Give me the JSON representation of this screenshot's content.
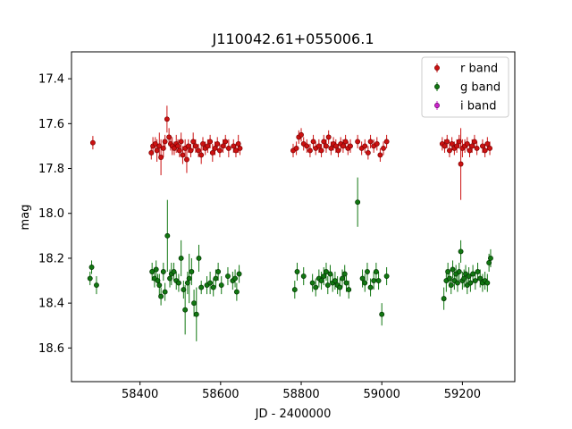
{
  "chart_data": {
    "type": "scatter",
    "title": "J110042.61+055006.1",
    "xlabel": "JD - 2400000",
    "ylabel": "mag",
    "xlim": [
      58230,
      59330
    ],
    "ylim": [
      18.75,
      17.28
    ],
    "y_inverted": true,
    "x_ticks": [
      58400,
      58600,
      58800,
      59000,
      59200
    ],
    "y_ticks": [
      17.4,
      17.6,
      17.8,
      18.0,
      18.2,
      18.4,
      18.6
    ],
    "x_tick_labels": [
      "58400",
      "58600",
      "58800",
      "59000",
      "59200"
    ],
    "y_tick_labels": [
      "17.4",
      "17.6",
      "17.8",
      "18.0",
      "18.2",
      "18.4",
      "18.6"
    ],
    "grid": false,
    "legend_position": "top-right",
    "series": [
      {
        "name": "r band",
        "color": "#cc1111",
        "edge_color": "#7a0000",
        "marker": "circle",
        "points": [
          [
            58283,
            17.685,
            0.03
          ],
          [
            58428,
            17.73,
            0.03
          ],
          [
            58432,
            17.7,
            0.04
          ],
          [
            58438,
            17.69,
            0.03
          ],
          [
            58442,
            17.72,
            0.05
          ],
          [
            58448,
            17.7,
            0.06
          ],
          [
            58452,
            17.75,
            0.08
          ],
          [
            58458,
            17.71,
            0.04
          ],
          [
            58462,
            17.68,
            0.03
          ],
          [
            58467,
            17.58,
            0.06
          ],
          [
            58472,
            17.66,
            0.04
          ],
          [
            58476,
            17.69,
            0.03
          ],
          [
            58480,
            17.7,
            0.04
          ],
          [
            58485,
            17.71,
            0.03
          ],
          [
            58490,
            17.69,
            0.04
          ],
          [
            58494,
            17.7,
            0.03
          ],
          [
            58498,
            17.72,
            0.03
          ],
          [
            58502,
            17.68,
            0.04
          ],
          [
            58506,
            17.74,
            0.04
          ],
          [
            58512,
            17.71,
            0.04
          ],
          [
            58516,
            17.76,
            0.06
          ],
          [
            58520,
            17.7,
            0.03
          ],
          [
            58526,
            17.72,
            0.03
          ],
          [
            58532,
            17.68,
            0.04
          ],
          [
            58538,
            17.7,
            0.03
          ],
          [
            58545,
            17.72,
            0.03
          ],
          [
            58552,
            17.74,
            0.04
          ],
          [
            58556,
            17.69,
            0.03
          ],
          [
            58562,
            17.71,
            0.03
          ],
          [
            58568,
            17.7,
            0.03
          ],
          [
            58574,
            17.68,
            0.03
          ],
          [
            58580,
            17.73,
            0.04
          ],
          [
            58586,
            17.71,
            0.03
          ],
          [
            58592,
            17.69,
            0.03
          ],
          [
            58598,
            17.72,
            0.03
          ],
          [
            58606,
            17.7,
            0.03
          ],
          [
            58612,
            17.68,
            0.03
          ],
          [
            58620,
            17.71,
            0.04
          ],
          [
            58632,
            17.7,
            0.03
          ],
          [
            58638,
            17.72,
            0.03
          ],
          [
            58644,
            17.69,
            0.04
          ],
          [
            58648,
            17.71,
            0.03
          ],
          [
            58780,
            17.72,
            0.03
          ],
          [
            58788,
            17.71,
            0.03
          ],
          [
            58794,
            17.66,
            0.03
          ],
          [
            58800,
            17.65,
            0.03
          ],
          [
            58806,
            17.69,
            0.03
          ],
          [
            58814,
            17.7,
            0.03
          ],
          [
            58822,
            17.72,
            0.03
          ],
          [
            58830,
            17.68,
            0.03
          ],
          [
            58836,
            17.71,
            0.03
          ],
          [
            58844,
            17.7,
            0.03
          ],
          [
            58850,
            17.72,
            0.03
          ],
          [
            58856,
            17.68,
            0.03
          ],
          [
            58862,
            17.7,
            0.03
          ],
          [
            58868,
            17.66,
            0.03
          ],
          [
            58874,
            17.71,
            0.03
          ],
          [
            58880,
            17.69,
            0.03
          ],
          [
            58886,
            17.7,
            0.03
          ],
          [
            58892,
            17.72,
            0.03
          ],
          [
            58898,
            17.69,
            0.03
          ],
          [
            58904,
            17.7,
            0.03
          ],
          [
            58910,
            17.68,
            0.03
          ],
          [
            58916,
            17.71,
            0.03
          ],
          [
            58922,
            17.7,
            0.03
          ],
          [
            58940,
            17.68,
            0.03
          ],
          [
            58950,
            17.71,
            0.03
          ],
          [
            58958,
            17.7,
            0.03
          ],
          [
            58966,
            17.73,
            0.03
          ],
          [
            58972,
            17.68,
            0.03
          ],
          [
            58980,
            17.7,
            0.03
          ],
          [
            58988,
            17.69,
            0.03
          ],
          [
            58996,
            17.74,
            0.03
          ],
          [
            59004,
            17.71,
            0.03
          ],
          [
            59012,
            17.68,
            0.03
          ],
          [
            59150,
            17.69,
            0.03
          ],
          [
            59156,
            17.7,
            0.03
          ],
          [
            59162,
            17.68,
            0.03
          ],
          [
            59168,
            17.72,
            0.03
          ],
          [
            59174,
            17.69,
            0.03
          ],
          [
            59180,
            17.71,
            0.03
          ],
          [
            59186,
            17.7,
            0.03
          ],
          [
            59192,
            17.68,
            0.03
          ],
          [
            59196,
            17.78,
            0.16
          ],
          [
            59200,
            17.71,
            0.04
          ],
          [
            59206,
            17.7,
            0.03
          ],
          [
            59212,
            17.69,
            0.03
          ],
          [
            59218,
            17.72,
            0.03
          ],
          [
            59224,
            17.7,
            0.03
          ],
          [
            59230,
            17.68,
            0.03
          ],
          [
            59236,
            17.71,
            0.03
          ],
          [
            59250,
            17.7,
            0.03
          ],
          [
            59256,
            17.72,
            0.03
          ],
          [
            59262,
            17.69,
            0.03
          ],
          [
            59268,
            17.71,
            0.03
          ]
        ]
      },
      {
        "name": "g band",
        "color": "#117711",
        "edge_color": "#003300",
        "marker": "circle",
        "points": [
          [
            58276,
            18.29,
            0.03
          ],
          [
            58280,
            18.24,
            0.03
          ],
          [
            58292,
            18.32,
            0.04
          ],
          [
            58430,
            18.26,
            0.04
          ],
          [
            58436,
            18.29,
            0.04
          ],
          [
            58440,
            18.25,
            0.04
          ],
          [
            58444,
            18.3,
            0.03
          ],
          [
            58448,
            18.32,
            0.05
          ],
          [
            58452,
            18.37,
            0.04
          ],
          [
            58458,
            18.26,
            0.04
          ],
          [
            58462,
            18.35,
            0.04
          ],
          [
            58468,
            18.1,
            0.16
          ],
          [
            58474,
            18.29,
            0.04
          ],
          [
            58478,
            18.27,
            0.05
          ],
          [
            58484,
            18.26,
            0.04
          ],
          [
            58490,
            18.3,
            0.04
          ],
          [
            58496,
            18.31,
            0.04
          ],
          [
            58502,
            18.2,
            0.08
          ],
          [
            58508,
            18.34,
            0.04
          ],
          [
            58512,
            18.43,
            0.11
          ],
          [
            58518,
            18.31,
            0.05
          ],
          [
            58522,
            18.29,
            0.11
          ],
          [
            58528,
            18.26,
            0.06
          ],
          [
            58534,
            18.4,
            0.06
          ],
          [
            58540,
            18.45,
            0.12
          ],
          [
            58546,
            18.2,
            0.06
          ],
          [
            58552,
            18.33,
            0.03
          ],
          [
            58566,
            18.32,
            0.04
          ],
          [
            58574,
            18.31,
            0.05
          ],
          [
            58582,
            18.33,
            0.04
          ],
          [
            58588,
            18.29,
            0.04
          ],
          [
            58594,
            18.26,
            0.04
          ],
          [
            58602,
            18.32,
            0.04
          ],
          [
            58618,
            18.28,
            0.04
          ],
          [
            58630,
            18.3,
            0.04
          ],
          [
            58636,
            18.29,
            0.04
          ],
          [
            58640,
            18.35,
            0.04
          ],
          [
            58646,
            18.27,
            0.04
          ],
          [
            58784,
            18.34,
            0.04
          ],
          [
            58790,
            18.26,
            0.04
          ],
          [
            58806,
            18.28,
            0.04
          ],
          [
            58828,
            18.31,
            0.04
          ],
          [
            58836,
            18.33,
            0.04
          ],
          [
            58844,
            18.29,
            0.04
          ],
          [
            58850,
            18.3,
            0.04
          ],
          [
            58856,
            18.28,
            0.04
          ],
          [
            58862,
            18.26,
            0.04
          ],
          [
            58866,
            18.32,
            0.04
          ],
          [
            58872,
            18.27,
            0.04
          ],
          [
            58878,
            18.31,
            0.04
          ],
          [
            58884,
            18.3,
            0.04
          ],
          [
            58890,
            18.32,
            0.04
          ],
          [
            58896,
            18.33,
            0.04
          ],
          [
            58902,
            18.29,
            0.04
          ],
          [
            58908,
            18.27,
            0.04
          ],
          [
            58912,
            18.31,
            0.04
          ],
          [
            58918,
            18.34,
            0.04
          ],
          [
            58940,
            17.95,
            0.11
          ],
          [
            58952,
            18.29,
            0.04
          ],
          [
            58958,
            18.31,
            0.04
          ],
          [
            58964,
            18.26,
            0.04
          ],
          [
            58972,
            18.33,
            0.04
          ],
          [
            58980,
            18.3,
            0.04
          ],
          [
            58986,
            18.26,
            0.04
          ],
          [
            58992,
            18.3,
            0.04
          ],
          [
            59000,
            18.45,
            0.05
          ],
          [
            59012,
            18.28,
            0.04
          ],
          [
            59154,
            18.38,
            0.05
          ],
          [
            59160,
            18.3,
            0.05
          ],
          [
            59164,
            18.26,
            0.04
          ],
          [
            59168,
            18.29,
            0.04
          ],
          [
            59172,
            18.32,
            0.04
          ],
          [
            59176,
            18.25,
            0.04
          ],
          [
            59180,
            18.3,
            0.04
          ],
          [
            59184,
            18.27,
            0.04
          ],
          [
            59188,
            18.31,
            0.04
          ],
          [
            59192,
            18.26,
            0.04
          ],
          [
            59196,
            18.17,
            0.05
          ],
          [
            59200,
            18.3,
            0.04
          ],
          [
            59204,
            18.29,
            0.04
          ],
          [
            59208,
            18.27,
            0.04
          ],
          [
            59212,
            18.32,
            0.04
          ],
          [
            59216,
            18.28,
            0.04
          ],
          [
            59220,
            18.31,
            0.04
          ],
          [
            59226,
            18.27,
            0.04
          ],
          [
            59232,
            18.3,
            0.04
          ],
          [
            59238,
            18.26,
            0.04
          ],
          [
            59244,
            18.29,
            0.04
          ],
          [
            59250,
            18.31,
            0.04
          ],
          [
            59256,
            18.3,
            0.04
          ],
          [
            59262,
            18.31,
            0.04
          ],
          [
            59266,
            18.22,
            0.04
          ],
          [
            59270,
            18.2,
            0.04
          ]
        ]
      },
      {
        "name": "i band",
        "color": "#cc22cc",
        "edge_color": "#660066",
        "marker": "circle",
        "points": []
      }
    ]
  }
}
